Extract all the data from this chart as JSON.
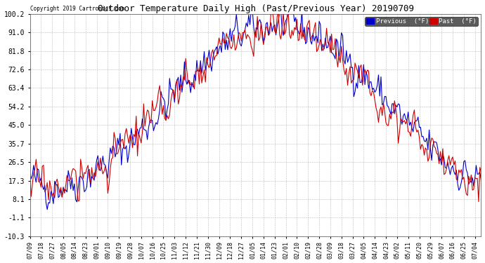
{
  "title": "Outdoor Temperature Daily High (Past/Previous Year) 20190709",
  "copyright": "Copyright 2019 Cartronics.com",
  "legend_previous_label": "Previous  (°F)",
  "legend_past_label": "Past  (°F)",
  "legend_previous_color": "#0000cc",
  "legend_past_color": "#cc0000",
  "yticks": [
    100.2,
    91.0,
    81.8,
    72.6,
    63.4,
    54.2,
    45.0,
    35.7,
    26.5,
    17.3,
    8.1,
    -1.1,
    -10.3
  ],
  "ymin": -10.3,
  "ymax": 100.2,
  "background_color": "#ffffff",
  "grid_color": "#aaaaaa",
  "line_width": 0.8,
  "xtick_labels": [
    "07/09",
    "07/18",
    "07/27",
    "08/05",
    "08/14",
    "08/23",
    "09/01",
    "09/10",
    "09/19",
    "09/28",
    "10/07",
    "10/16",
    "10/25",
    "11/03",
    "11/12",
    "11/21",
    "11/30",
    "12/09",
    "12/18",
    "12/27",
    "01/05",
    "01/14",
    "01/23",
    "02/01",
    "02/10",
    "02/19",
    "02/28",
    "03/09",
    "03/18",
    "03/27",
    "04/05",
    "04/14",
    "04/23",
    "05/02",
    "05/11",
    "05/20",
    "05/29",
    "06/07",
    "06/16",
    "06/25",
    "07/04"
  ]
}
